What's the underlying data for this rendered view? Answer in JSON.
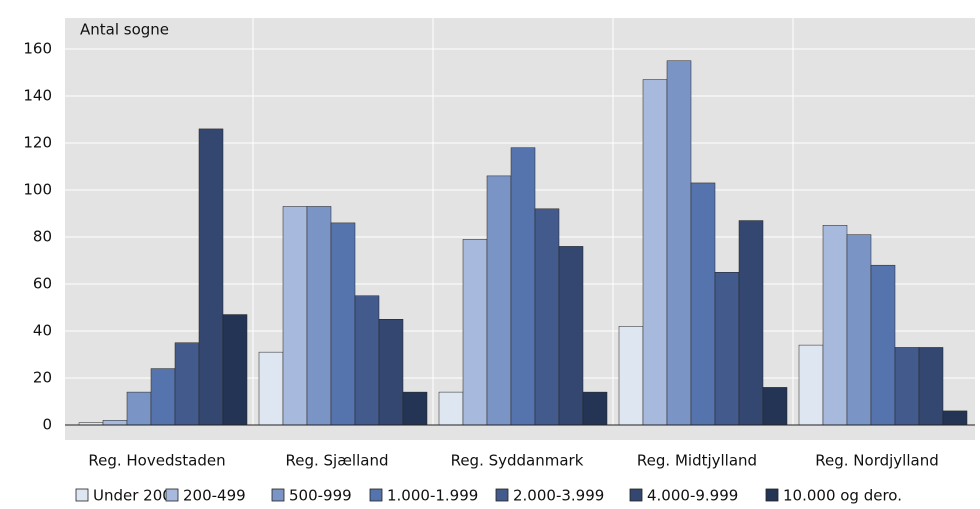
{
  "chart_data": {
    "type": "bar",
    "y_label": "Antal sogne",
    "categories": [
      "Reg. Hovedstaden",
      "Reg. Sjælland",
      "Reg. Syddanmark",
      "Reg. Midtjylland",
      "Reg. Nordjylland"
    ],
    "series": [
      {
        "name": "Under 200",
        "color": "#dde6f1",
        "values": [
          1,
          31,
          14,
          42,
          34
        ]
      },
      {
        "name": "200-499",
        "color": "#a7b9dc",
        "values": [
          2,
          93,
          79,
          147,
          85
        ]
      },
      {
        "name": "500-999",
        "color": "#7b94c6",
        "values": [
          14,
          93,
          106,
          155,
          81
        ]
      },
      {
        "name": "1.000-1.999",
        "color": "#5574ae",
        "values": [
          24,
          86,
          118,
          103,
          68
        ]
      },
      {
        "name": "2.000-3.999",
        "color": "#425b8c",
        "values": [
          35,
          55,
          92,
          65,
          33
        ]
      },
      {
        "name": "4.000-9.999",
        "color": "#334770",
        "values": [
          126,
          45,
          76,
          87,
          33
        ]
      },
      {
        "name": "10.000 og dero.",
        "color": "#243454",
        "values": [
          47,
          14,
          14,
          16,
          6
        ]
      }
    ],
    "ylim": [
      0,
      160
    ],
    "yticks": [
      0,
      20,
      40,
      60,
      80,
      100,
      120,
      140,
      160
    ],
    "grid": true
  }
}
